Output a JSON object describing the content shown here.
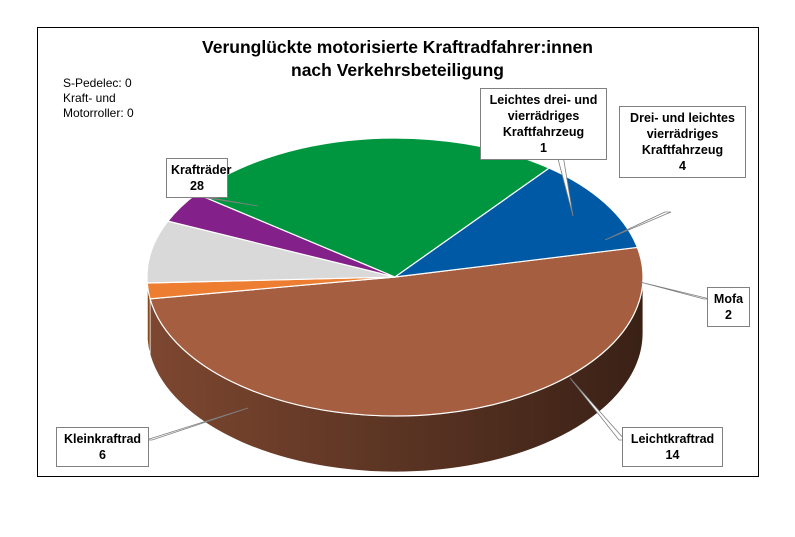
{
  "chart_data": {
    "type": "pie",
    "title": [
      "Verunglückte motorisierte Kraftradfahrer:innen",
      "nach Verkehrsbeteiligung"
    ],
    "note": [
      "S-Pedelec:  0",
      "Kraft- und",
      "Motorroller: 0"
    ],
    "slices": [
      {
        "name": [
          "Krafträder"
        ],
        "value": 28,
        "color": "#A65E40"
      },
      {
        "name": [
          "Leichtes drei- und",
          "vierrädriges",
          "Kraftfahrzeug"
        ],
        "value": 1,
        "color": "#ED7D31"
      },
      {
        "name": [
          "Drei- und leichtes",
          "vierrädriges",
          "Kraftfahrzeug"
        ],
        "value": 4,
        "color": "#D9D9D9"
      },
      {
        "name": [
          "Mofa"
        ],
        "value": 2,
        "color": "#84208A"
      },
      {
        "name": [
          "Leichtkraftrad"
        ],
        "value": 14,
        "color": "#00963F"
      },
      {
        "name": [
          "Kleinkraftrad"
        ],
        "value": 6,
        "color": "#0059A4"
      }
    ]
  }
}
